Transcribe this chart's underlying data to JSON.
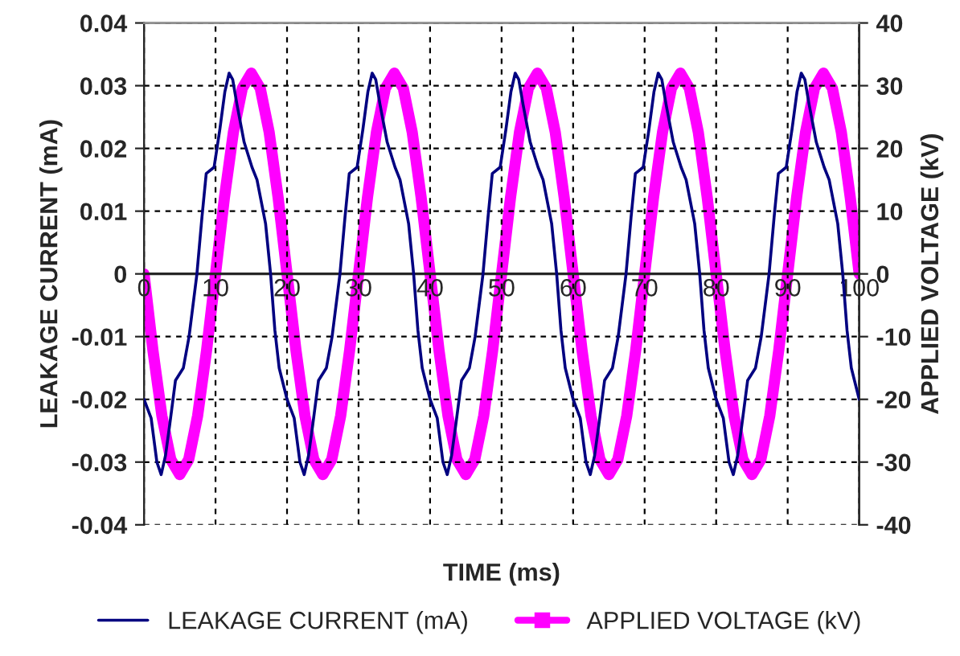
{
  "chart_data": {
    "type": "line",
    "xlabel": "TIME (ms)",
    "ylabel": "LEAKAGE CURRENT (mA)",
    "y2label": "APPLIED VOLTAGE (kV)",
    "xlim": [
      0,
      100
    ],
    "xticks": [
      0,
      10,
      20,
      30,
      40,
      50,
      60,
      70,
      80,
      90,
      100
    ],
    "ylim": [
      -0.04,
      0.04
    ],
    "yticks": [
      -0.04,
      -0.03,
      -0.02,
      -0.01,
      0,
      0.01,
      0.02,
      0.03,
      0.04
    ],
    "y2lim": [
      -40,
      40
    ],
    "y2ticks": [
      -40,
      -30,
      -20,
      -10,
      0,
      10,
      20,
      30,
      40
    ],
    "grid": true,
    "legend": "bottom",
    "series": [
      {
        "name": "LEAKAGE CURRENT (mA)",
        "color": "#000080",
        "marker": "none",
        "line_style": "solid",
        "x": [
          0,
          1,
          1.8,
          2.4,
          3,
          3.6,
          4.4,
          5.5,
          6.3,
          7.4,
          8.1,
          8.7,
          9.8,
          10.6,
          11.3,
          11.9,
          12.4,
          13,
          14,
          15.1,
          15.8,
          17,
          17.7,
          18.3,
          18.9,
          20,
          21,
          21.8,
          22.4,
          23,
          23.6,
          24.4,
          25.5,
          26.3,
          27.4,
          28.1,
          28.7,
          29.8,
          30.6,
          31.3,
          31.9,
          32.4,
          33,
          34,
          35.1,
          35.8,
          37,
          37.7,
          38.3,
          38.9,
          40,
          41,
          41.8,
          42.4,
          43,
          43.6,
          44.4,
          45.5,
          46.3,
          47.4,
          48.1,
          48.7,
          49.8,
          50.6,
          51.3,
          51.9,
          52.4,
          53,
          54,
          55.1,
          55.8,
          57,
          57.7,
          58.3,
          58.9,
          60,
          61,
          61.8,
          62.4,
          63,
          63.6,
          64.4,
          65.5,
          66.3,
          67.4,
          68.1,
          68.7,
          69.8,
          70.6,
          71.3,
          71.9,
          72.4,
          73,
          74,
          75.1,
          75.8,
          77,
          77.7,
          78.3,
          78.9,
          80,
          81,
          81.8,
          82.4,
          83,
          83.6,
          84.4,
          85.5,
          86.3,
          87.4,
          88.1,
          88.7,
          89.8,
          90.6,
          91.3,
          91.9,
          92.4,
          93,
          94,
          95.1,
          95.8,
          97,
          97.7,
          98.3,
          98.9,
          100
        ],
        "values": [
          -0.02,
          -0.023,
          -0.03,
          -0.032,
          -0.029,
          -0.024,
          -0.017,
          -0.015,
          -0.01,
          0,
          0.009,
          0.016,
          0.017,
          0.023,
          0.029,
          0.032,
          0.031,
          0.027,
          0.021,
          0.017,
          0.015,
          0.008,
          0,
          -0.009,
          -0.015,
          -0.02,
          -0.023,
          -0.03,
          -0.032,
          -0.029,
          -0.024,
          -0.017,
          -0.015,
          -0.01,
          0,
          0.009,
          0.016,
          0.017,
          0.023,
          0.029,
          0.032,
          0.031,
          0.027,
          0.021,
          0.017,
          0.015,
          0.008,
          0,
          -0.009,
          -0.015,
          -0.02,
          -0.023,
          -0.03,
          -0.032,
          -0.029,
          -0.024,
          -0.017,
          -0.015,
          -0.01,
          0,
          0.009,
          0.016,
          0.017,
          0.023,
          0.029,
          0.032,
          0.031,
          0.027,
          0.021,
          0.017,
          0.015,
          0.008,
          0,
          -0.009,
          -0.015,
          -0.02,
          -0.023,
          -0.03,
          -0.032,
          -0.029,
          -0.024,
          -0.017,
          -0.015,
          -0.01,
          0,
          0.009,
          0.016,
          0.017,
          0.023,
          0.029,
          0.032,
          0.031,
          0.027,
          0.021,
          0.017,
          0.015,
          0.008,
          0,
          -0.009,
          -0.015,
          -0.02,
          -0.023,
          -0.03,
          -0.032,
          -0.029,
          -0.024,
          -0.017,
          -0.015,
          -0.01,
          0,
          0.009,
          0.016,
          0.017,
          0.023,
          0.029,
          0.032,
          0.031,
          0.027,
          0.021,
          0.017,
          0.015,
          0.008,
          0,
          -0.009,
          -0.015,
          -0.02
        ]
      },
      {
        "name": "APPLIED VOLTAGE (kV)",
        "color": "#ff00ff",
        "axis": "y2",
        "marker": "square",
        "line_style": "solid",
        "x": [
          0,
          1.25,
          2.5,
          3.75,
          5,
          6.25,
          7.5,
          8.75,
          10,
          11.25,
          12.5,
          13.75,
          15,
          16.25,
          17.5,
          18.75,
          20,
          21.25,
          22.5,
          23.75,
          25,
          26.25,
          27.5,
          28.75,
          30,
          31.25,
          32.5,
          33.75,
          35,
          36.25,
          37.5,
          38.75,
          40,
          41.25,
          42.5,
          43.75,
          45,
          46.25,
          47.5,
          48.75,
          50,
          51.25,
          52.5,
          53.75,
          55,
          56.25,
          57.5,
          58.75,
          60,
          61.25,
          62.5,
          63.75,
          65,
          66.25,
          67.5,
          68.75,
          70,
          71.25,
          72.5,
          73.75,
          75,
          76.25,
          77.5,
          78.75,
          80,
          81.25,
          82.5,
          83.75,
          85,
          86.25,
          87.5,
          88.75,
          90,
          91.25,
          92.5,
          93.75,
          95,
          96.25,
          97.5,
          98.75,
          100
        ],
        "values": [
          0,
          -12.2,
          -22.6,
          -29.6,
          -32,
          -29.6,
          -22.6,
          -12.2,
          0,
          12.2,
          22.6,
          29.6,
          32,
          29.6,
          22.6,
          12.2,
          0,
          -12.2,
          -22.6,
          -29.6,
          -32,
          -29.6,
          -22.6,
          -12.2,
          0,
          12.2,
          22.6,
          29.6,
          32,
          29.6,
          22.6,
          12.2,
          0,
          -12.2,
          -22.6,
          -29.6,
          -32,
          -29.6,
          -22.6,
          -12.2,
          0,
          12.2,
          22.6,
          29.6,
          32,
          29.6,
          22.6,
          12.2,
          0,
          -12.2,
          -22.6,
          -29.6,
          -32,
          -29.6,
          -22.6,
          -12.2,
          0,
          12.2,
          22.6,
          29.6,
          32,
          29.6,
          22.6,
          12.2,
          0,
          -12.2,
          -22.6,
          -29.6,
          -32,
          -29.6,
          -22.6,
          -12.2,
          0,
          12.2,
          22.6,
          29.6,
          32,
          29.6,
          22.6,
          12.2,
          0
        ]
      }
    ]
  }
}
